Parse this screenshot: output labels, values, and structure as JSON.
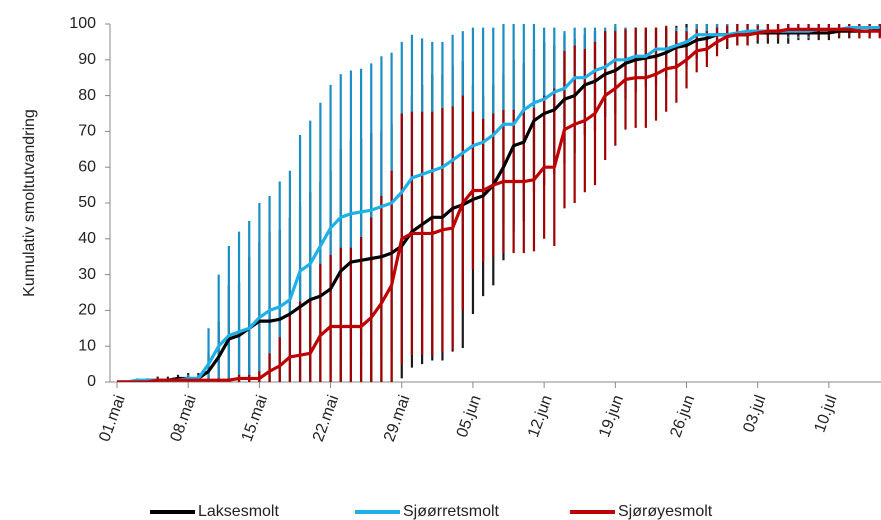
{
  "chart_data": {
    "type": "line",
    "y_label": "Kumulativ smoltutvandring",
    "categories": [
      "01.mai",
      null,
      null,
      null,
      null,
      null,
      null,
      "08.mai",
      null,
      null,
      null,
      null,
      null,
      null,
      "15.mai",
      null,
      null,
      null,
      null,
      null,
      null,
      "22.mai",
      null,
      null,
      null,
      null,
      null,
      null,
      "29.mai",
      null,
      null,
      null,
      null,
      null,
      null,
      "05.jun",
      null,
      null,
      null,
      null,
      null,
      null,
      "12.jun",
      null,
      null,
      null,
      null,
      null,
      null,
      "19.jun",
      null,
      null,
      null,
      null,
      null,
      null,
      "26.jun",
      null,
      null,
      null,
      null,
      null,
      null,
      "03.jul",
      null,
      null,
      null,
      null,
      null,
      null,
      "10.jul",
      null,
      null,
      null,
      null,
      null
    ],
    "ylim": [
      0,
      100
    ],
    "yticks": [
      0,
      10,
      20,
      30,
      40,
      50,
      60,
      70,
      80,
      90,
      100
    ],
    "grid": false,
    "legend": "bottom",
    "series": [
      {
        "name": "Laksesmolt",
        "color": "#000000",
        "error_color": "#1a1a1a",
        "values": [
          0,
          0,
          0,
          0.5,
          0.5,
          0.5,
          1,
          1,
          1,
          3,
          7,
          12,
          13,
          15,
          17,
          17,
          17.5,
          19,
          21,
          23,
          24,
          26,
          31,
          33.5,
          34,
          34.5,
          35,
          36,
          38,
          42,
          44,
          46,
          46,
          48.5,
          49.5,
          51,
          52,
          55,
          60,
          66,
          67,
          73,
          75,
          76,
          79,
          80,
          83,
          84,
          86,
          87,
          89,
          90,
          90.5,
          91,
          92,
          93.5,
          94,
          95.5,
          96,
          97,
          97,
          97,
          97,
          97.5,
          97.5,
          97.5,
          97.5,
          97.5,
          97.5,
          97.5,
          97.5,
          98,
          98,
          98,
          98,
          98.5
        ],
        "errors": [
          0,
          0,
          0,
          0.5,
          1,
          1,
          1,
          1.5,
          1.5,
          5,
          10,
          15,
          15,
          20,
          22,
          25,
          25,
          27,
          28,
          30,
          32,
          33,
          34,
          34,
          34,
          35,
          35,
          36,
          37,
          38,
          39,
          40,
          40,
          40,
          40,
          32,
          28,
          28,
          26,
          24,
          22,
          20,
          20,
          18,
          18,
          16,
          14,
          14,
          12,
          12,
          10,
          9,
          8,
          8,
          7,
          6,
          6,
          5,
          5,
          4,
          4,
          3,
          3,
          3,
          3,
          3,
          3,
          2,
          2,
          2,
          2,
          2,
          2,
          2,
          2,
          2
        ]
      },
      {
        "name": "Sjøørretsmolt",
        "color": "#1fb0e8",
        "error_color": "#1a8fc4",
        "values": [
          0,
          0,
          0.5,
          0.5,
          0.5,
          0.5,
          0.5,
          1,
          1,
          5,
          10,
          13,
          14,
          15,
          18,
          20,
          21,
          23,
          31,
          33,
          38,
          43,
          46,
          47,
          47.5,
          48,
          49,
          50,
          53,
          57,
          58,
          59,
          60,
          62,
          64,
          66,
          67,
          69,
          72,
          72,
          76,
          78,
          79,
          81,
          82,
          85,
          85,
          87,
          88,
          90,
          90,
          91,
          91,
          93,
          93,
          94,
          95,
          97,
          97,
          97,
          97,
          97.5,
          98,
          98,
          98,
          98,
          98,
          98,
          98,
          98.5,
          98.5,
          98.5,
          99,
          99,
          99,
          99
        ],
        "errors": [
          0,
          0,
          0.5,
          0.5,
          0.5,
          0.5,
          0.5,
          1,
          1,
          10,
          20,
          25,
          28,
          30,
          32,
          32,
          35,
          36,
          38,
          40,
          40,
          40,
          40,
          40,
          40,
          41,
          42,
          42,
          42,
          40,
          38,
          36,
          35,
          35,
          34,
          33,
          32,
          30,
          28,
          28,
          24,
          22,
          20,
          18,
          16,
          14,
          14,
          12,
          11,
          10,
          9,
          8,
          8,
          6,
          6,
          5,
          4,
          3,
          3,
          3,
          3,
          2,
          2,
          2,
          2,
          2,
          2,
          2,
          2,
          2,
          2,
          2,
          2,
          2,
          2,
          2
        ]
      },
      {
        "name": "Sjørøyesmolt",
        "color": "#c00000",
        "error_color": "#a00000",
        "values": [
          0,
          0,
          0,
          0,
          0.5,
          0.5,
          0.5,
          0.5,
          0.5,
          0.5,
          0.5,
          0.5,
          1,
          1,
          1,
          3,
          4.5,
          7,
          7.5,
          8,
          13,
          15.5,
          15.5,
          15.5,
          15.5,
          18,
          22,
          27,
          40,
          41.5,
          41.5,
          41.5,
          42.5,
          43,
          50,
          53.5,
          53.5,
          55,
          56,
          56,
          56,
          56.5,
          60,
          60,
          70.5,
          72,
          73,
          75,
          80,
          82,
          84.5,
          85,
          85,
          86,
          87.5,
          88,
          90,
          92.5,
          93,
          95,
          96.5,
          97,
          97,
          97.5,
          98,
          98,
          98.5,
          98.5,
          98.5,
          98.5,
          98.5,
          98.5,
          98.5,
          98,
          98,
          98
        ],
        "errors": [
          0,
          0,
          0,
          0,
          0,
          0,
          0,
          0,
          0,
          0,
          0.5,
          0.5,
          1,
          1,
          2,
          5,
          8,
          12,
          15,
          15,
          20,
          20,
          22,
          22,
          25,
          28,
          30,
          32,
          35,
          34,
          34,
          34,
          34,
          34,
          30,
          22,
          20,
          20,
          20,
          20,
          20,
          20,
          20,
          22,
          22,
          22,
          20,
          20,
          18,
          16,
          14,
          14,
          14,
          13,
          12,
          10,
          8,
          6,
          5,
          4,
          3,
          3,
          3,
          2,
          2,
          2,
          2,
          2,
          2,
          2,
          2,
          2,
          2,
          2,
          2,
          2
        ]
      }
    ]
  }
}
